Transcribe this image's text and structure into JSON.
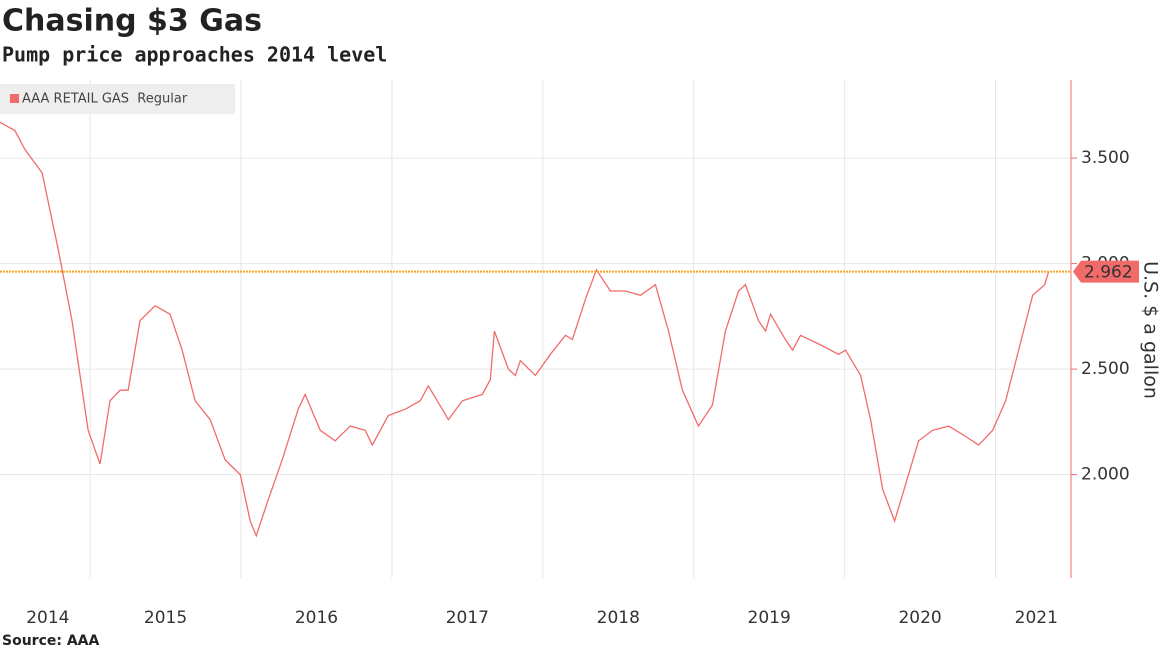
{
  "chart_data": {
    "type": "line",
    "title": "Chasing $3 Gas",
    "subtitle": "Pump price approaches 2014 level",
    "y_axis_label": "U.S. $ a gallon",
    "source": "Source: AAA",
    "series": [
      {
        "name": "AAA RETAIL GAS  Regular",
        "color": "#f26b6b",
        "x": [
          2014.403,
          2014.502,
          2014.569,
          2014.682,
          2014.788,
          2014.88,
          2014.987,
          2015.066,
          2015.132,
          2015.199,
          2015.252,
          2015.331,
          2015.431,
          2015.53,
          2015.61,
          2015.696,
          2015.796,
          2015.895,
          2015.995,
          2016.061,
          2016.101,
          2016.18,
          2016.273,
          2016.379,
          2016.425,
          2016.525,
          2016.624,
          2016.724,
          2016.823,
          2016.87,
          2016.976,
          2017.089,
          2017.188,
          2017.241,
          2017.334,
          2017.374,
          2017.467,
          2017.599,
          2017.652,
          2017.679,
          2017.772,
          2017.818,
          2017.851,
          2017.951,
          2018.05,
          2018.15,
          2018.196,
          2018.282,
          2018.355,
          2018.448,
          2018.547,
          2018.647,
          2018.746,
          2018.833,
          2018.925,
          2019.031,
          2019.124,
          2019.21,
          2019.297,
          2019.343,
          2019.429,
          2019.476,
          2019.509,
          2019.608,
          2019.655,
          2019.708,
          2019.854,
          2019.96,
          2020.006,
          2020.106,
          2020.172,
          2020.252,
          2020.331,
          2020.411,
          2020.49,
          2020.583,
          2020.689,
          2020.782,
          2020.888,
          2020.981,
          2021.067,
          2021.153,
          2021.246,
          2021.326,
          2021.352
        ],
        "values": [
          3.67,
          3.63,
          3.54,
          3.43,
          3.07,
          2.73,
          2.21,
          2.05,
          2.35,
          2.4,
          2.4,
          2.73,
          2.8,
          2.76,
          2.59,
          2.35,
          2.26,
          2.07,
          2.0,
          1.78,
          1.71,
          1.88,
          2.07,
          2.31,
          2.38,
          2.21,
          2.16,
          2.23,
          2.21,
          2.14,
          2.28,
          2.31,
          2.35,
          2.42,
          2.31,
          2.26,
          2.35,
          2.38,
          2.45,
          2.68,
          2.5,
          2.47,
          2.54,
          2.47,
          2.57,
          2.66,
          2.64,
          2.83,
          2.97,
          2.87,
          2.87,
          2.85,
          2.9,
          2.68,
          2.4,
          2.23,
          2.33,
          2.68,
          2.87,
          2.9,
          2.73,
          2.68,
          2.76,
          2.64,
          2.59,
          2.66,
          2.61,
          2.57,
          2.59,
          2.47,
          2.26,
          1.93,
          1.78,
          1.97,
          2.16,
          2.21,
          2.23,
          2.19,
          2.14,
          2.21,
          2.35,
          2.59,
          2.85,
          2.9,
          2.962
        ]
      }
    ],
    "reference_line": 2.962,
    "reference_color": "#f5a623",
    "xlim": [
      2014.403,
      2021.5
    ],
    "ylim": [
      1.51,
      3.87
    ],
    "xticks": [
      {
        "value": 2014.72,
        "label": "2014"
      },
      {
        "value": 2015.5,
        "label": "2015"
      },
      {
        "value": 2016.5,
        "label": "2016"
      },
      {
        "value": 2017.5,
        "label": "2017"
      },
      {
        "value": 2018.5,
        "label": "2018"
      },
      {
        "value": 2019.5,
        "label": "2019"
      },
      {
        "value": 2020.5,
        "label": "2020"
      },
      {
        "value": 2021.27,
        "label": "2021"
      }
    ],
    "xgrid": [
      2015,
      2016,
      2017,
      2018,
      2019,
      2020,
      2021
    ],
    "yticks": [
      {
        "value": 2,
        "label": "2.000"
      },
      {
        "value": 2.5,
        "label": "2.500"
      },
      {
        "value": 3,
        "label": "3.000"
      },
      {
        "value": 3.5,
        "label": "3.500"
      }
    ],
    "grid": true,
    "legend": "upper left"
  }
}
